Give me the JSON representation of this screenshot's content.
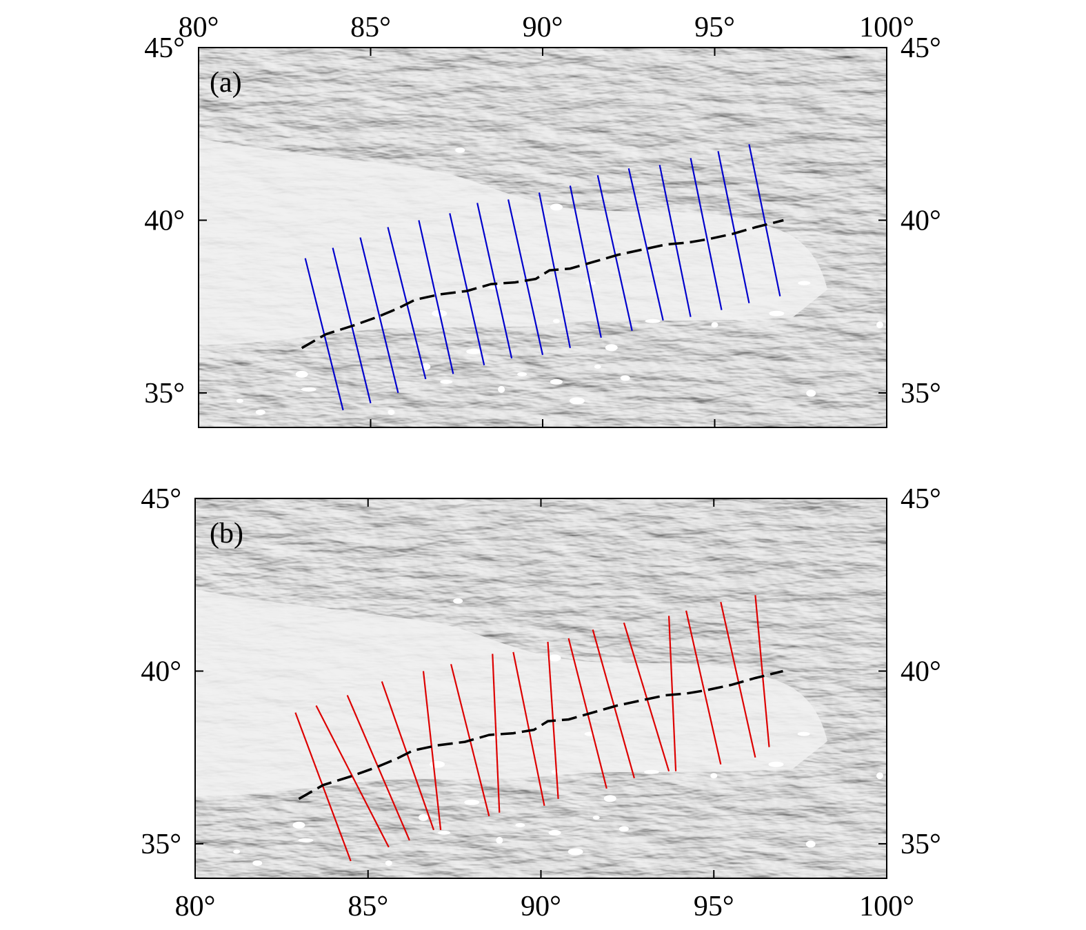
{
  "figure": {
    "type": "map",
    "lon_range": [
      80,
      100
    ],
    "lat_range": [
      34,
      45
    ],
    "lon_ticks": [
      80,
      85,
      90,
      95,
      100
    ],
    "lat_ticks": [
      35,
      40,
      45
    ],
    "lon_tick_labels": [
      "80°",
      "85°",
      "90°",
      "95°",
      "100°"
    ],
    "lat_tick_labels": [
      "35°",
      "40°",
      "45°"
    ],
    "basemap": "grey shaded relief",
    "boundary_line": {
      "style": "dashed",
      "color": "#000000",
      "points": [
        [
          83.0,
          36.3
        ],
        [
          83.7,
          36.7
        ],
        [
          84.5,
          36.95
        ],
        [
          85.2,
          37.2
        ],
        [
          85.8,
          37.45
        ],
        [
          86.3,
          37.7
        ],
        [
          87.0,
          37.85
        ],
        [
          87.8,
          37.95
        ],
        [
          88.5,
          38.15
        ],
        [
          89.2,
          38.2
        ],
        [
          89.8,
          38.3
        ],
        [
          90.2,
          38.55
        ],
        [
          90.8,
          38.6
        ],
        [
          91.5,
          38.8
        ],
        [
          92.2,
          39.0
        ],
        [
          92.9,
          39.15
        ],
        [
          93.6,
          39.3
        ],
        [
          94.2,
          39.35
        ],
        [
          94.8,
          39.45
        ],
        [
          95.5,
          39.6
        ],
        [
          96.2,
          39.8
        ],
        [
          97.0,
          40.0
        ]
      ]
    },
    "panels": [
      {
        "label": "(a)",
        "line_color": "#0000cc",
        "lon_ticks_top": true,
        "lon_ticks_bottom": false,
        "profiles": [
          [
            [
              83.1,
              38.9
            ],
            [
              84.2,
              34.5
            ]
          ],
          [
            [
              83.9,
              39.2
            ],
            [
              85.0,
              34.7
            ]
          ],
          [
            [
              84.7,
              39.5
            ],
            [
              85.8,
              35.0
            ]
          ],
          [
            [
              85.5,
              39.8
            ],
            [
              86.6,
              35.4
            ]
          ],
          [
            [
              86.4,
              40.0
            ],
            [
              87.4,
              35.55
            ]
          ],
          [
            [
              87.3,
              40.2
            ],
            [
              88.3,
              35.8
            ]
          ],
          [
            [
              88.1,
              40.5
            ],
            [
              89.1,
              36.0
            ]
          ],
          [
            [
              89.0,
              40.6
            ],
            [
              90.0,
              36.1
            ]
          ],
          [
            [
              89.9,
              40.8
            ],
            [
              90.8,
              36.3
            ]
          ],
          [
            [
              90.8,
              41.0
            ],
            [
              91.7,
              36.6
            ]
          ],
          [
            [
              91.6,
              41.3
            ],
            [
              92.6,
              36.8
            ]
          ],
          [
            [
              92.5,
              41.5
            ],
            [
              93.5,
              37.1
            ]
          ],
          [
            [
              93.4,
              41.6
            ],
            [
              94.3,
              37.2
            ]
          ],
          [
            [
              94.3,
              41.8
            ],
            [
              95.2,
              37.4
            ]
          ],
          [
            [
              95.1,
              42.0
            ],
            [
              96.0,
              37.6
            ]
          ],
          [
            [
              96.0,
              42.2
            ],
            [
              96.9,
              37.8
            ]
          ]
        ]
      },
      {
        "label": "(b)",
        "line_color": "#dd0000",
        "lon_ticks_top": false,
        "lon_ticks_bottom": true,
        "profiles": [
          [
            [
              82.9,
              38.8
            ],
            [
              84.5,
              34.5
            ]
          ],
          [
            [
              83.5,
              39.0
            ],
            [
              85.6,
              34.9
            ]
          ],
          [
            [
              84.4,
              39.3
            ],
            [
              86.2,
              35.1
            ]
          ],
          [
            [
              85.4,
              39.7
            ],
            [
              86.9,
              35.4
            ]
          ],
          [
            [
              86.6,
              40.0
            ],
            [
              87.1,
              35.4
            ]
          ],
          [
            [
              87.4,
              40.2
            ],
            [
              88.5,
              35.8
            ]
          ],
          [
            [
              88.6,
              40.5
            ],
            [
              88.8,
              35.9
            ]
          ],
          [
            [
              89.2,
              40.55
            ],
            [
              90.1,
              36.1
            ]
          ],
          [
            [
              90.2,
              40.85
            ],
            [
              90.5,
              36.3
            ]
          ],
          [
            [
              90.8,
              40.95
            ],
            [
              91.9,
              36.6
            ]
          ],
          [
            [
              91.5,
              41.2
            ],
            [
              92.7,
              36.9
            ]
          ],
          [
            [
              92.4,
              41.4
            ],
            [
              93.7,
              37.1
            ]
          ],
          [
            [
              93.7,
              41.6
            ],
            [
              93.9,
              37.1
            ]
          ],
          [
            [
              94.2,
              41.75
            ],
            [
              95.2,
              37.3
            ]
          ],
          [
            [
              95.2,
              42.0
            ],
            [
              96.2,
              37.5
            ]
          ],
          [
            [
              96.2,
              42.2
            ],
            [
              96.6,
              37.8
            ]
          ]
        ]
      }
    ]
  }
}
